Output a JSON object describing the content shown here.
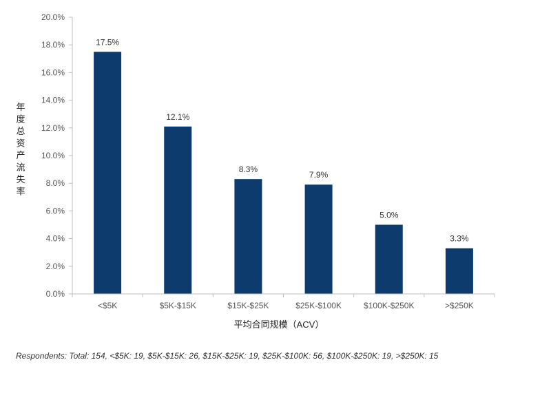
{
  "chart_data": {
    "type": "bar",
    "categories": [
      "<$5K",
      "$5K-$15K",
      "$15K-$25K",
      "$25K-$100K",
      "$100K-$250K",
      ">$250K"
    ],
    "values": [
      17.5,
      12.1,
      8.3,
      7.9,
      5.0,
      3.3
    ],
    "value_labels": [
      "17.5%",
      "12.1%",
      "8.3%",
      "7.9%",
      "5.0%",
      "3.3%"
    ],
    "ylim": [
      0,
      20
    ],
    "yticks": [
      0,
      2,
      4,
      6,
      8,
      10,
      12,
      14,
      16,
      18,
      20
    ],
    "ytick_labels": [
      "0.0%",
      "2.0%",
      "4.0%",
      "6.0%",
      "8.0%",
      "10.0%",
      "12.0%",
      "14.0%",
      "16.0%",
      "18.0%",
      "20.0%"
    ],
    "xlabel": "平均合同规模（ACV）",
    "ylabel": "年度总资产流失率",
    "bar_color": "#0d3b6e",
    "axis_color": "#bfbfbf",
    "grid": false,
    "legend": "none"
  },
  "footnote": "Respondents: Total: 154, <$5K: 19, $5K-$15K: 26, $15K-$25K: 19, $25K-$100K: 56, $100K-$250K: 19, >$250K: 15"
}
